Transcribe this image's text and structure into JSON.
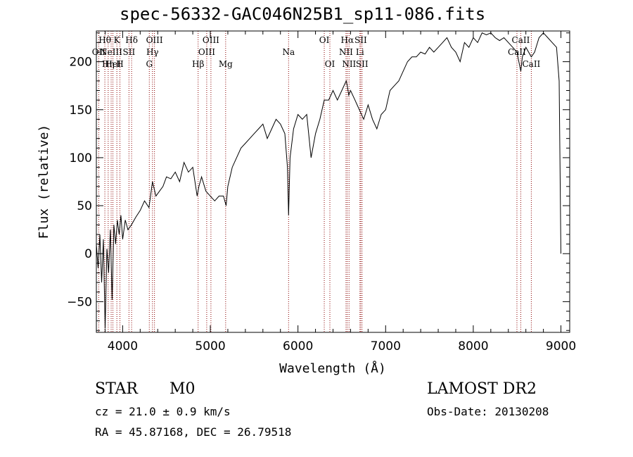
{
  "chart_data": {
    "type": "line",
    "title": "spec-56332-GAC046N25B1_sp11-086.fits",
    "xlabel": "Wavelength (Å)",
    "ylabel": "Flux (relative)",
    "xlim": [
      3700,
      9100
    ],
    "ylim": [
      -82,
      232
    ],
    "xticks": [
      4000,
      5000,
      6000,
      7000,
      8000,
      9000
    ],
    "yticks": [
      -50,
      0,
      50,
      100,
      150,
      200
    ],
    "grid": false,
    "line_color": "#000000",
    "marker_color": "#8b0000",
    "series": [
      {
        "x": [
          3700,
          3720,
          3740,
          3760,
          3780,
          3800,
          3820,
          3840,
          3860,
          3880,
          3900,
          3920,
          3940,
          3960,
          3980,
          4000,
          4030,
          4060,
          4100,
          4150,
          4200,
          4250,
          4300,
          4340,
          4380,
          4420,
          4460,
          4500,
          4550,
          4600,
          4650,
          4700,
          4750,
          4800,
          4850,
          4870,
          4900,
          4950,
          5000,
          5050,
          5100,
          5150,
          5180,
          5200,
          5250,
          5300,
          5350,
          5400,
          5450,
          5500,
          5550,
          5600,
          5650,
          5700,
          5750,
          5800,
          5850,
          5880,
          5893,
          5910,
          5950,
          6000,
          6050,
          6100,
          6150,
          6200,
          6250,
          6300,
          6350,
          6400,
          6450,
          6500,
          6550,
          6563,
          6580,
          6600,
          6650,
          6700,
          6750,
          6800,
          6850,
          6900,
          6950,
          7000,
          7050,
          7100,
          7150,
          7200,
          7250,
          7300,
          7350,
          7400,
          7450,
          7500,
          7550,
          7600,
          7650,
          7700,
          7750,
          7800,
          7850,
          7900,
          7950,
          8000,
          8050,
          8100,
          8150,
          8200,
          8250,
          8300,
          8350,
          8400,
          8450,
          8498,
          8520,
          8542,
          8560,
          8600,
          8662,
          8700,
          8750,
          8800,
          8850,
          8900,
          8950,
          8980,
          9000
        ],
        "y": [
          10,
          -15,
          20,
          -30,
          15,
          -78,
          5,
          -20,
          25,
          -48,
          30,
          10,
          35,
          20,
          40,
          15,
          35,
          25,
          30,
          38,
          45,
          55,
          48,
          75,
          60,
          65,
          70,
          80,
          78,
          85,
          75,
          95,
          85,
          90,
          60,
          70,
          80,
          65,
          60,
          55,
          60,
          60,
          50,
          70,
          90,
          100,
          110,
          115,
          120,
          125,
          130,
          135,
          120,
          130,
          140,
          135,
          125,
          90,
          40,
          100,
          130,
          145,
          140,
          145,
          100,
          125,
          140,
          160,
          160,
          170,
          160,
          170,
          180,
          175,
          165,
          170,
          160,
          150,
          140,
          155,
          140,
          130,
          145,
          150,
          170,
          175,
          180,
          190,
          200,
          205,
          205,
          210,
          208,
          215,
          210,
          215,
          220,
          225,
          215,
          210,
          200,
          220,
          215,
          225,
          220,
          230,
          228,
          230,
          225,
          222,
          225,
          220,
          215,
          210,
          200,
          190,
          205,
          215,
          205,
          210,
          225,
          230,
          225,
          220,
          215,
          180,
          0
        ]
      }
    ],
    "line_markers": [
      {
        "wl": 3727,
        "label": "OII",
        "row": 2
      },
      {
        "wl": 3797,
        "label": "Hθ",
        "row": 1
      },
      {
        "wl": 3835,
        "label": "Hη",
        "row": 3
      },
      {
        "wl": 3869,
        "label": "NeIII",
        "row": 2
      },
      {
        "wl": 3889,
        "label": "HeI",
        "row": 3
      },
      {
        "wl": 3934,
        "label": "K",
        "row": 1
      },
      {
        "wl": 3969,
        "label": "H",
        "row": 3
      },
      {
        "wl": 4072,
        "label": "SII",
        "row": 2
      },
      {
        "wl": 4102,
        "label": "Hδ",
        "row": 1
      },
      {
        "wl": 4304,
        "label": "G",
        "row": 3
      },
      {
        "wl": 4340,
        "label": "Hγ",
        "row": 2
      },
      {
        "wl": 4363,
        "label": "OIII",
        "row": 1
      },
      {
        "wl": 4861,
        "label": "Hβ",
        "row": 3
      },
      {
        "wl": 4959,
        "label": "OIII",
        "row": 2
      },
      {
        "wl": 5007,
        "label": "OIII",
        "row": 1
      },
      {
        "wl": 5175,
        "label": "Mg",
        "row": 3
      },
      {
        "wl": 5893,
        "label": "Na",
        "row": 2
      },
      {
        "wl": 6300,
        "label": "OI",
        "row": 1
      },
      {
        "wl": 6364,
        "label": "OI",
        "row": 3
      },
      {
        "wl": 6548,
        "label": "NII",
        "row": 2
      },
      {
        "wl": 6563,
        "label": "Hα",
        "row": 1
      },
      {
        "wl": 6583,
        "label": "NII",
        "row": 3
      },
      {
        "wl": 6707,
        "label": "Li",
        "row": 2
      },
      {
        "wl": 6716,
        "label": "SII",
        "row": 1
      },
      {
        "wl": 6731,
        "label": "SII",
        "row": 3
      },
      {
        "wl": 8498,
        "label": "CaII",
        "row": 2
      },
      {
        "wl": 8542,
        "label": "CaII",
        "row": 1
      },
      {
        "wl": 8662,
        "label": "CaII",
        "row": 3
      }
    ]
  },
  "info": {
    "object_class": "STAR",
    "subclass": "M0",
    "survey": "LAMOST DR2",
    "redshift": "cz = 21.0 ± 0.9 km/s",
    "obs_date": "Obs-Date: 20130208",
    "coords": "RA =  45.87168, DEC =  26.79518"
  }
}
